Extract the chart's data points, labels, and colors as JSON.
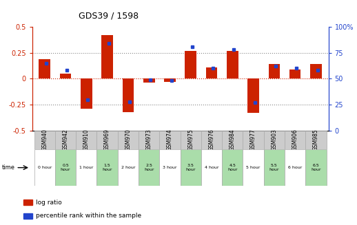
{
  "title": "GDS39 / 1598",
  "samples": [
    "GSM940",
    "GSM942",
    "GSM910",
    "GSM969",
    "GSM970",
    "GSM973",
    "GSM974",
    "GSM975",
    "GSM976",
    "GSM984",
    "GSM977",
    "GSM903",
    "GSM906",
    "GSM985"
  ],
  "time_labels": [
    "0 hour",
    "0.5\nhour",
    "1 hour",
    "1.5\nhour",
    "2 hour",
    "2.5\nhour",
    "3 hour",
    "3.5\nhour",
    "4 hour",
    "4.5\nhour",
    "5 hour",
    "5.5\nhour",
    "6 hour",
    "6.5\nhour"
  ],
  "log_ratio": [
    0.19,
    0.05,
    -0.29,
    0.42,
    -0.32,
    -0.04,
    -0.03,
    0.27,
    0.11,
    0.27,
    -0.33,
    0.14,
    0.09,
    0.14
  ],
  "percentile": [
    65,
    58,
    30,
    84,
    28,
    49,
    48,
    81,
    60,
    78,
    27,
    62,
    60,
    58
  ],
  "time_bg_white": "white",
  "time_bg_green": "#aaddaa",
  "time_bg_pattern": [
    0,
    1,
    0,
    1,
    0,
    1,
    0,
    1,
    0,
    1,
    0,
    1,
    0,
    1
  ],
  "sample_bg": "#cccccc",
  "ylim_left": [
    -0.5,
    0.5
  ],
  "ylim_right": [
    0,
    100
  ],
  "yticks_left": [
    -0.5,
    -0.25,
    0,
    0.25,
    0.5
  ],
  "yticks_right": [
    0,
    25,
    50,
    75,
    100
  ],
  "bar_color": "#cc2200",
  "dot_color": "#2244cc",
  "chart_bg": "white",
  "legend_red": "log ratio",
  "legend_blue": "percentile rank within the sample",
  "bar_width": 0.55
}
